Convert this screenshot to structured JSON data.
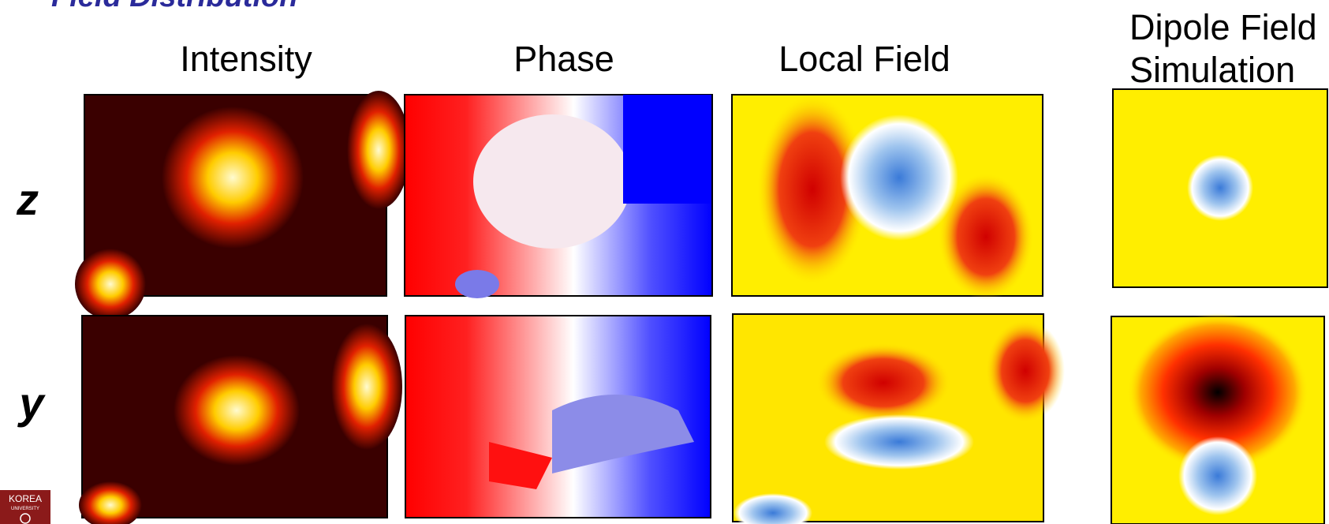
{
  "header": {
    "title": "Field Distribution"
  },
  "columns": [
    "Intensity",
    "Phase",
    "Local Field"
  ],
  "dipole_column": [
    "Dipole Field",
    "Simulation"
  ],
  "rows": [
    "z",
    "y"
  ],
  "logo": {
    "lines": [
      "KOREA",
      "UNIVERSITY"
    ]
  }
}
